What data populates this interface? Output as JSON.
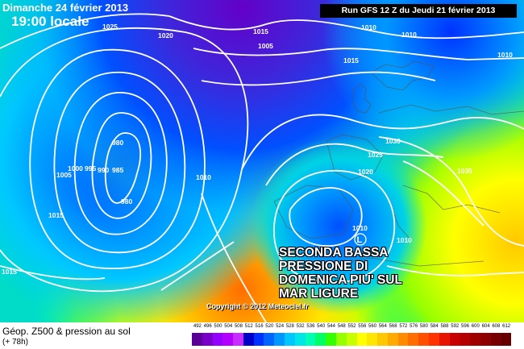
{
  "header": {
    "date": "Dimanche 24 février 2013",
    "time": "19:00 locale",
    "run": "Run GFS 12 Z du Jeudi 21 février 2013"
  },
  "annotation": {
    "lines": [
      "SECONDA BASSA",
      "PRESSIONE DI",
      "DOMENICA PIU' SUL",
      "MAR LIGURE"
    ]
  },
  "low_marker": {
    "symbol": "L",
    "value": "1010"
  },
  "isobar_labels": [
    "1025",
    "1020",
    "1015",
    "1005",
    "1010",
    "1010",
    "1015",
    "1010",
    "1005",
    "1000",
    "995",
    "990",
    "985",
    "980",
    "980",
    "1010",
    "1015",
    "1015",
    "1025",
    "1030",
    "1020",
    "1035",
    "1010"
  ],
  "copyright": "Copyright © 2012 Meteociel.fr",
  "legend": {
    "title": "Géop. Z500 & pression au sol",
    "forecast_hour": "(+ 78h)",
    "scale": [
      "492",
      "496",
      "500",
      "504",
      "508",
      "512",
      "516",
      "520",
      "524",
      "528",
      "532",
      "536",
      "540",
      "544",
      "548",
      "552",
      "556",
      "560",
      "564",
      "568",
      "572",
      "576",
      "580",
      "584",
      "588",
      "592",
      "596",
      "600",
      "604",
      "608",
      "612"
    ],
    "colors": [
      "#5a0096",
      "#7800c8",
      "#9600ff",
      "#b400ff",
      "#c82dff",
      "#0000c8",
      "#0032ff",
      "#0064ff",
      "#0096ff",
      "#00c8ff",
      "#00e6e6",
      "#00ffb4",
      "#00ff64",
      "#32ff00",
      "#96ff00",
      "#c8ff00",
      "#ffff00",
      "#ffe600",
      "#ffc800",
      "#ffaa00",
      "#ff8c00",
      "#ff6e00",
      "#ff5000",
      "#ff3200",
      "#e61400",
      "#c80000",
      "#b40000",
      "#a00000",
      "#8c0000",
      "#780000",
      "#640000"
    ]
  },
  "colors": {
    "isobar": "#ffffff",
    "banner_bg": "#000000"
  }
}
